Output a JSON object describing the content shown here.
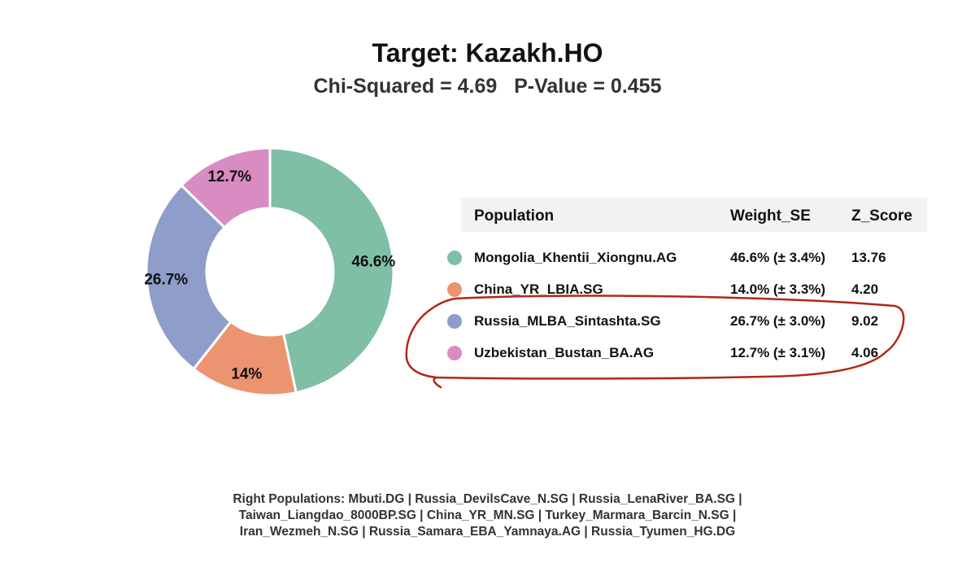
{
  "title": "Target: Kazakh.HO",
  "subtitle": "Chi-Squared = 4.69   P-Value = 0.455",
  "chart_data": {
    "type": "pie",
    "donut": true,
    "slices": [
      {
        "name": "Mongolia_Khentii_Xiongnu.AG",
        "value": 46.6,
        "label": "46.6%",
        "color": "#7fbfa6"
      },
      {
        "name": "China_YR_LBIA.SG",
        "value": 14.0,
        "label": "14%",
        "color": "#ec9470"
      },
      {
        "name": "Russia_MLBA_Sintashta.SG",
        "value": 26.7,
        "label": "26.7%",
        "color": "#8e9dc9"
      },
      {
        "name": "Uzbekistan_Bustan_BA.AG",
        "value": 12.7,
        "label": "12.7%",
        "color": "#d98cc2"
      }
    ]
  },
  "table": {
    "headers": [
      "Population",
      "Weight_SE",
      "Z_Score"
    ],
    "rows": [
      {
        "population": "Mongolia_Khentii_Xiongnu.AG",
        "weight_se": "46.6% (± 3.4%)",
        "z_score": "13.76",
        "color": "#7fbfa6"
      },
      {
        "population": "China_YR_LBIA.SG",
        "weight_se": "14.0% (± 3.3%)",
        "z_score": "4.20",
        "color": "#ec9470"
      },
      {
        "population": "Russia_MLBA_Sintashta.SG",
        "weight_se": "26.7% (± 3.0%)",
        "z_score": "9.02",
        "color": "#8e9dc9"
      },
      {
        "population": "Uzbekistan_Bustan_BA.AG",
        "weight_se": "12.7% (± 3.1%)",
        "z_score": "4.06",
        "color": "#d98cc2"
      }
    ]
  },
  "annotation_color": "#b0281a",
  "footer": {
    "line1": "Right Populations: Mbuti.DG | Russia_DevilsCave_N.SG | Russia_LenaRiver_BA.SG |",
    "line2": "Taiwan_Liangdao_8000BP.SG | China_YR_MN.SG | Turkey_Marmara_Barcin_N.SG |",
    "line3": "Iran_Wezmeh_N.SG | Russia_Samara_EBA_Yamnaya.AG | Russia_Tyumen_HG.DG"
  }
}
